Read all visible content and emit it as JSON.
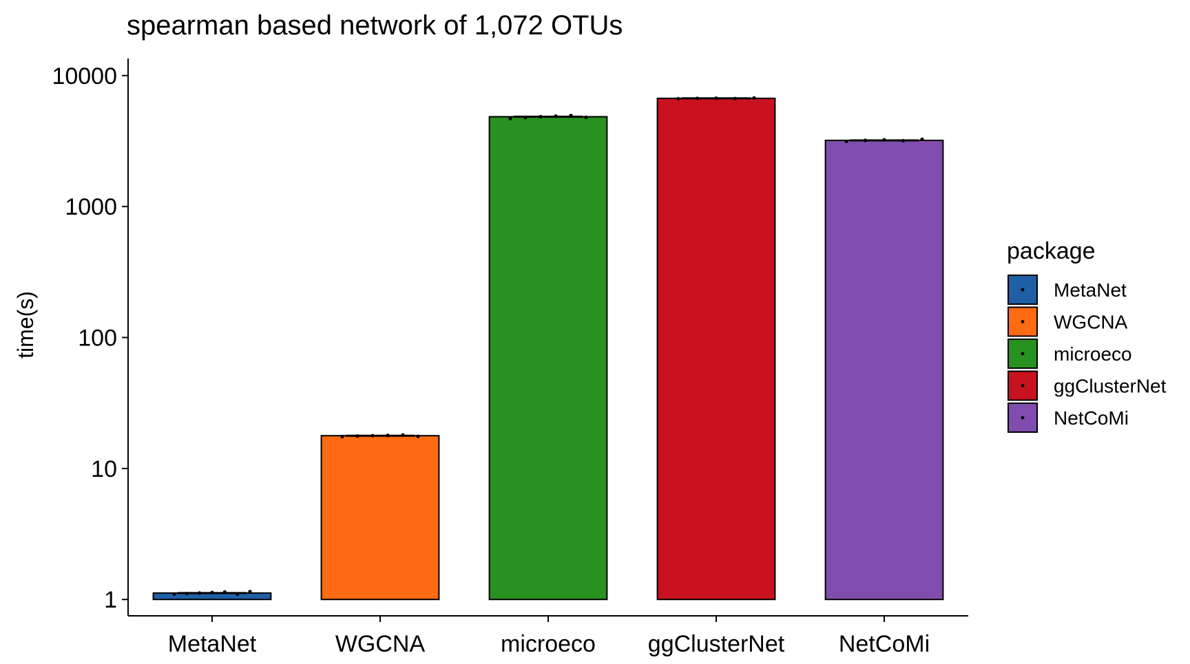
{
  "chart_data": {
    "type": "bar",
    "title": "spearman based network of 1,072 OTUs",
    "xlabel": "",
    "ylabel": "time(s)",
    "yscale": "log10",
    "ylim": [
      0.75,
      13500
    ],
    "yticks": [
      1,
      10,
      100,
      1000,
      10000
    ],
    "ytick_labels": [
      "1",
      "10",
      "100",
      "1000",
      "10000"
    ],
    "grid": false,
    "categories": [
      "MetaNet",
      "WGCNA",
      "microeco",
      "ggClusterNet",
      "NetCoMi"
    ],
    "values": [
      1.12,
      17.8,
      4850,
      6700,
      3200
    ],
    "colors": [
      "#1F5FA6",
      "#FF6A13",
      "#27921F",
      "#C9121F",
      "#804DAE"
    ],
    "points": [
      [
        1.1,
        1.11,
        1.12,
        1.13,
        1.14,
        1.1,
        1.15
      ],
      [
        17.5,
        17.7,
        17.8,
        17.9,
        18.0,
        17.6
      ],
      [
        4700,
        4780,
        4850,
        4900,
        4950,
        4800
      ],
      [
        6650,
        6700,
        6720,
        6680,
        6750
      ],
      [
        3150,
        3200,
        3230,
        3180,
        3260
      ]
    ],
    "legend": {
      "title": "package",
      "position": "right",
      "items": [
        "MetaNet",
        "WGCNA",
        "microeco",
        "ggClusterNet",
        "NetCoMi"
      ]
    }
  }
}
